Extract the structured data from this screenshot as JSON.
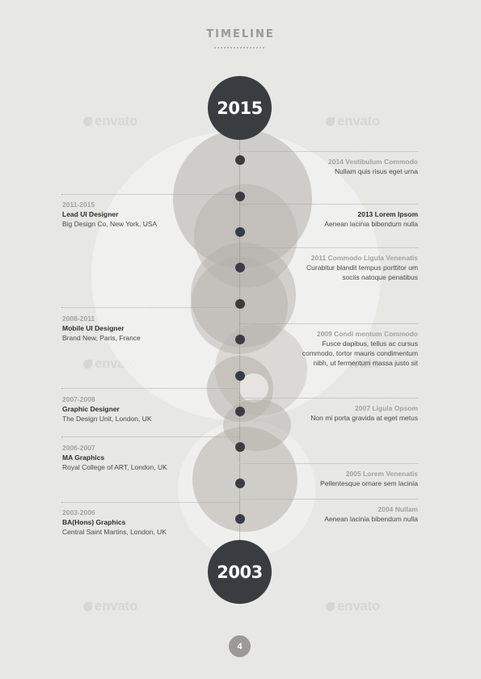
{
  "title": "TIMELINE",
  "years": {
    "top": "2015",
    "bottom": "2003"
  },
  "watermark": "envato",
  "left_entries": [
    {
      "years": "2011-2015",
      "role": "Lead UI Designer",
      "place": "Big Design Co, New York, USA"
    },
    {
      "years": "2008-2011",
      "role": "Mobile UI Designer",
      "place": "Brand New, Paris, France"
    },
    {
      "years": "2007-2008",
      "role": "Graphic Designer",
      "place": "The Design Unit, London, UK"
    },
    {
      "years": "2006-2007",
      "role": "MA Graphics",
      "place": "Royal College of ART, London, UK"
    },
    {
      "years": "2003-2006",
      "role": "BA(Hons) Graphics",
      "place": "Central Saint Martins, London, UK"
    }
  ],
  "right_entries": [
    {
      "heading": "2014 Vestibulum Commodo",
      "text": "Nullam quis risus eget urna"
    },
    {
      "heading": "2013 Lorem Ipsom",
      "text": "Aenean lacinia bibendum nulla"
    },
    {
      "heading": "2011 Commodo Ligula Venenatis",
      "line1": "Curabitur blandit tempus porttitor um",
      "line2": "sociis natoque penatibus"
    },
    {
      "heading": "2009 Condi mentum Commodo",
      "line1": "Fusce dapibus, tellus ac cursus",
      "line2": "commodo, tortor mauris condimentum",
      "line3": "nibh, ut fermentum massa justo sit"
    },
    {
      "heading": "2007  Ligula Opsom",
      "text": "Non mi porta gravida at eget metus"
    },
    {
      "heading": "2005 Lorem Venenatis",
      "text": "Pellentesque ornare sem lacinia"
    },
    {
      "heading": "2004 Nullam",
      "text": "Aenean lacinia bibendum nulla"
    }
  ],
  "page_number": "4",
  "colors": {
    "background": "#e7e7e4",
    "dark": "#393d42",
    "circle_fill": "#c4c1bc",
    "light_circle": "#f1f1ef"
  }
}
